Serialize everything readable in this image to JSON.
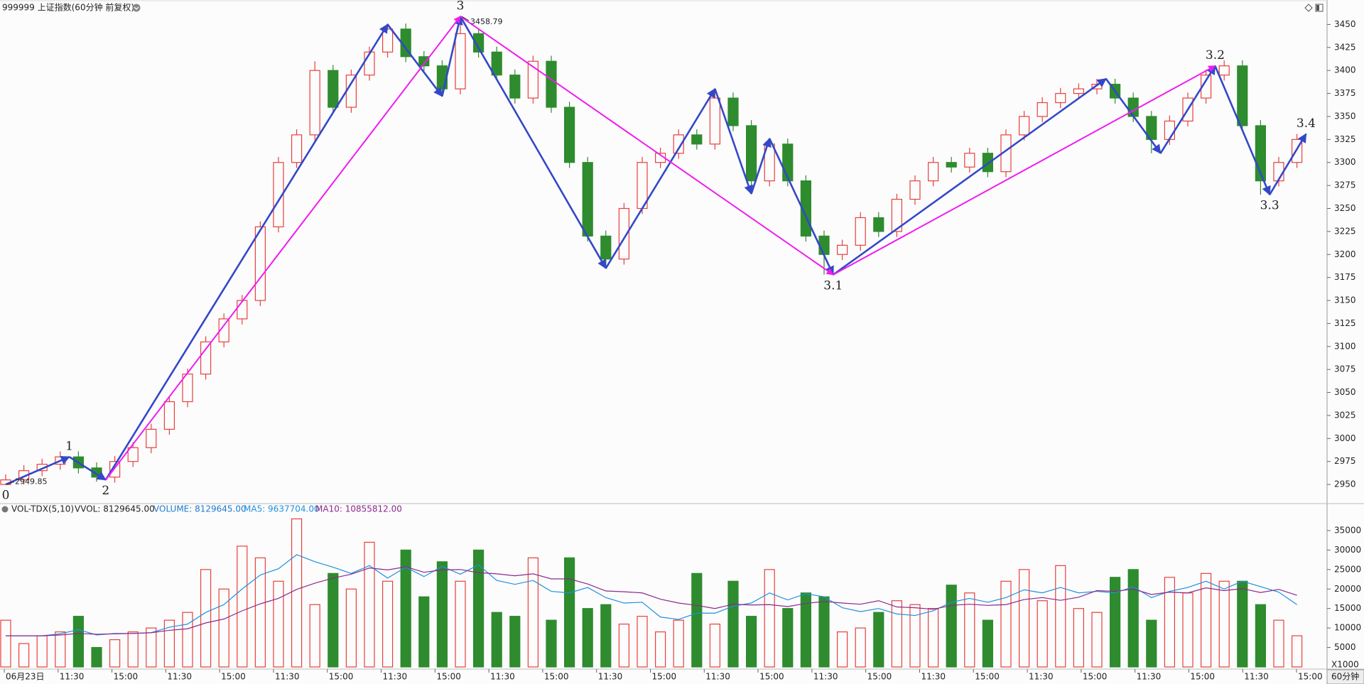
{
  "chart_data": [
    {
      "type": "candlestick",
      "title": "999999 上证指数(60分钟 前复权)",
      "open": [
        2950,
        2955,
        2965,
        2972,
        2980,
        2968,
        2958,
        2975,
        2990,
        3010,
        3040,
        3070,
        3105,
        3130,
        3150,
        3230,
        3300,
        3330,
        3400,
        3360,
        3395,
        3420,
        3445,
        3415,
        3405,
        3380,
        3440,
        3420,
        3395,
        3370,
        3410,
        3360,
        3300,
        3220,
        3195,
        3250,
        3300,
        3310,
        3330,
        3320,
        3370,
        3340,
        3280,
        3320,
        3280,
        3220,
        3200,
        3210,
        3240,
        3225,
        3260,
        3280,
        3300,
        3295,
        3310,
        3290,
        3330,
        3350,
        3365,
        3375,
        3380,
        3385,
        3370,
        3350,
        3325,
        3345,
        3370,
        3395,
        3405,
        3340,
        3280,
        3300
      ],
      "high": [
        2961,
        2971,
        2978,
        2986,
        2986,
        2974,
        2981,
        2996,
        3016,
        3046,
        3076,
        3111,
        3136,
        3156,
        3236,
        3306,
        3336,
        3410,
        3406,
        3401,
        3426,
        3451,
        3451,
        3421,
        3411,
        3458.79,
        3446,
        3426,
        3401,
        3416,
        3416,
        3366,
        3306,
        3226,
        3256,
        3306,
        3316,
        3336,
        3336,
        3380,
        3376,
        3346,
        3326,
        3326,
        3286,
        3226,
        3216,
        3246,
        3246,
        3266,
        3286,
        3306,
        3306,
        3316,
        3316,
        3336,
        3356,
        3371,
        3381,
        3386,
        3391,
        3391,
        3376,
        3356,
        3351,
        3376,
        3401,
        3411,
        3411,
        3346,
        3306,
        3331
      ],
      "low": [
        2949.85,
        2950,
        2959,
        2966,
        2962,
        2953,
        2952,
        2969,
        2984,
        3004,
        3034,
        3064,
        3099,
        3124,
        3144,
        3224,
        3294,
        3324,
        3354,
        3354,
        3389,
        3414,
        3409,
        3399,
        3372,
        3374,
        3414,
        3389,
        3364,
        3364,
        3354,
        3294,
        3214,
        3185,
        3189,
        3244,
        3294,
        3304,
        3314,
        3314,
        3334,
        3266,
        3274,
        3274,
        3214,
        3178,
        3194,
        3204,
        3219,
        3219,
        3254,
        3274,
        3289,
        3289,
        3284,
        3284,
        3324,
        3344,
        3359,
        3369,
        3374,
        3364,
        3344,
        3310,
        3319,
        3339,
        3364,
        3389,
        3334,
        3265,
        3274,
        3294
      ],
      "close": [
        2955,
        2965,
        2972,
        2980,
        2968,
        2958,
        2975,
        2990,
        3010,
        3040,
        3070,
        3105,
        3130,
        3150,
        3230,
        3300,
        3330,
        3400,
        3360,
        3395,
        3420,
        3445,
        3415,
        3405,
        3380,
        3440,
        3420,
        3395,
        3370,
        3410,
        3360,
        3300,
        3220,
        3195,
        3250,
        3300,
        3310,
        3330,
        3320,
        3370,
        3340,
        3280,
        3320,
        3280,
        3220,
        3200,
        3210,
        3240,
        3225,
        3260,
        3280,
        3300,
        3295,
        3310,
        3290,
        3330,
        3350,
        3365,
        3375,
        3380,
        3385,
        3370,
        3350,
        3325,
        3345,
        3370,
        3395,
        3405,
        3340,
        3280,
        3300,
        3325
      ],
      "up_color": "#e8403c",
      "down_color": "#2e8b2e",
      "ylim": [
        2930,
        3465
      ],
      "yticks": [
        2950,
        2975,
        3000,
        3025,
        3050,
        3075,
        3100,
        3125,
        3150,
        3175,
        3200,
        3225,
        3250,
        3275,
        3300,
        3325,
        3350,
        3375,
        3400,
        3425,
        3450
      ],
      "zigzag": [
        {
          "color": "#3348c8",
          "x": [
            0,
            3.5,
            5.5,
            21,
            24,
            25,
            33,
            39,
            41,
            42,
            45.5,
            60.5,
            63.5,
            66.5,
            69.5,
            71.5
          ],
          "values": [
            2950,
            2980,
            2955,
            3450,
            3372,
            3458.79,
            3185,
            3380,
            3266,
            3326,
            3178,
            3391,
            3310,
            3405,
            3265,
            3331
          ]
        },
        {
          "color": "#f01cf0",
          "x": [
            5.5,
            25,
            45.5,
            66.5
          ],
          "values": [
            2955,
            3458.79,
            3178,
            3405
          ]
        }
      ],
      "wave_labels": {
        "labels": [
          "0",
          "1",
          "2",
          "3",
          "3.1",
          "3.2",
          "3.3",
          "3.4"
        ],
        "x": [
          0,
          3.5,
          5.5,
          25,
          45.5,
          66.5,
          69.5,
          71.5
        ],
        "values": [
          2950,
          2980,
          2955,
          3458.79,
          3178,
          3405,
          3265,
          3331
        ]
      }
    },
    {
      "type": "bar",
      "title": "VOL-TDX(5,10)",
      "vvol": "VVOL: 8129645.00",
      "volume": "VOLUME: 8129645.00",
      "ma5": "MA5: 9637704.00",
      "ma10": "MA10: 10855812.00",
      "values": [
        12000,
        6000,
        8000,
        9000,
        13000,
        5000,
        7000,
        9000,
        10000,
        12000,
        14000,
        25000,
        20000,
        31000,
        28000,
        22000,
        38000,
        16000,
        24000,
        20000,
        32000,
        22000,
        30000,
        18000,
        27000,
        22000,
        30000,
        14000,
        13000,
        28000,
        12000,
        28000,
        15000,
        16000,
        11000,
        13000,
        9000,
        12000,
        24000,
        11000,
        22000,
        13000,
        25000,
        15000,
        19000,
        18000,
        9000,
        10000,
        14000,
        17000,
        16000,
        15000,
        21000,
        19000,
        12000,
        22000,
        25000,
        17000,
        26000,
        15000,
        14000,
        23000,
        25000,
        12000,
        23000,
        19000,
        24000,
        22000,
        22000,
        16000,
        12000,
        8000
      ],
      "series": [
        {
          "color": "#2090e0",
          "values": [
            8000,
            8000,
            8000,
            8500,
            9600,
            8200,
            8600,
            8600,
            8800,
            10200,
            11000,
            14000,
            16000,
            20000,
            23600,
            25200,
            28800,
            27000,
            25600,
            24000,
            26000,
            22800,
            25600,
            23200,
            25800,
            23800,
            26200,
            22200,
            21200,
            22200,
            19400,
            19000,
            20400,
            17800,
            16400,
            16600,
            12800,
            12200,
            13800,
            13800,
            15600,
            16400,
            19000,
            17200,
            18800,
            18000,
            15200,
            14200,
            15000,
            13600,
            13200,
            14400,
            16600,
            17600,
            16600,
            17800,
            19800,
            19000,
            20400,
            19000,
            19400,
            19000,
            20600,
            17800,
            19400,
            20400,
            22000,
            20000,
            22000,
            20600,
            19200,
            16000
          ]
        },
        {
          "color": "#8b2a8b",
          "values": [
            8000,
            8000,
            8000,
            8200,
            8600,
            8400,
            8500,
            8600,
            8800,
            9400,
            9800,
            11300,
            12300,
            14400,
            16200,
            17600,
            19900,
            21500,
            22800,
            23800,
            25400,
            24900,
            25700,
            24300,
            24900,
            25000,
            24200,
            23900,
            23400,
            23900,
            22600,
            22600,
            21300,
            19500,
            19300,
            19000,
            17400,
            16400,
            15800,
            15000,
            16100,
            15900,
            16000,
            15500,
            16300,
            16800,
            16400,
            16100,
            17000,
            15400,
            15200,
            14800,
            15800,
            16100,
            15800,
            16000,
            17300,
            17800,
            17100,
            17900,
            19600,
            19400,
            20000,
            18600,
            19200,
            19000,
            20300,
            19600,
            20100,
            19100,
            19900,
            18400
          ]
        }
      ],
      "ylim": [
        0,
        37000
      ],
      "yticks": [
        5000,
        10000,
        15000,
        20000,
        25000,
        30000,
        35000
      ],
      "xlabels": [
        "06月23日",
        "11:30",
        "15:00",
        "11:30",
        "15:00",
        "11:30",
        "15:00",
        "11:30",
        "15:00",
        "11:30",
        "15:00",
        "11:30",
        "15:00",
        "11:30",
        "15:00",
        "11:30",
        "15:00",
        "11:30",
        "15:00",
        "11:30",
        "15:00",
        "11:30",
        "15:00",
        "11:30",
        "15:00"
      ],
      "unit_label": "X1000",
      "period_label": "60分钟"
    }
  ]
}
